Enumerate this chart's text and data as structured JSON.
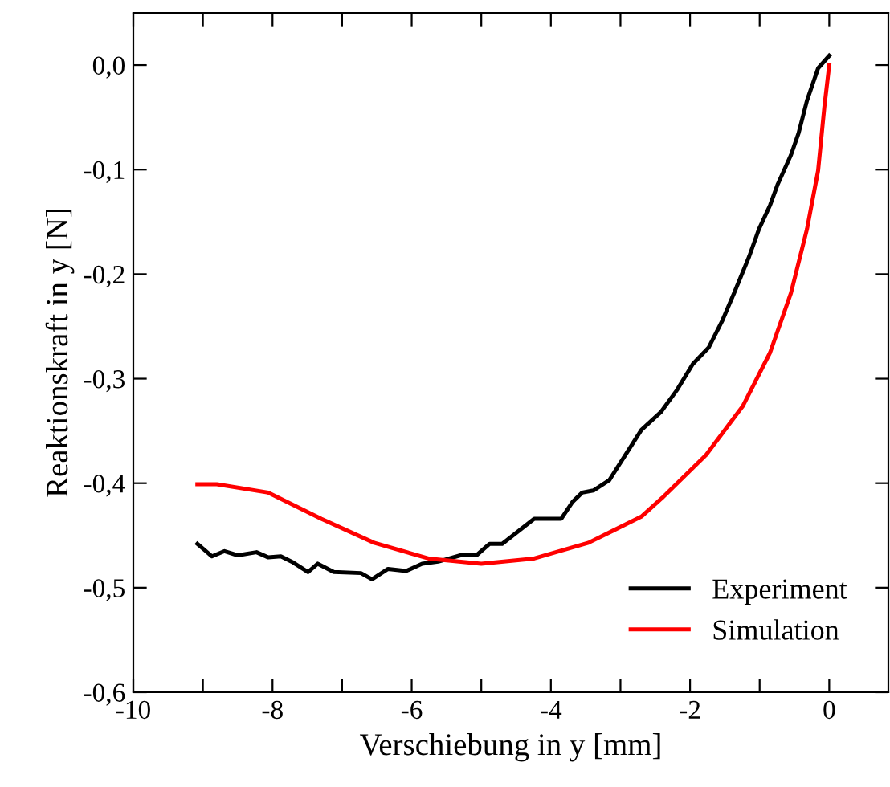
{
  "chart_data": {
    "type": "line",
    "xlabel": "Verschiebung in y [mm]",
    "ylabel": "Reaktionskraft in y [N]",
    "xlim": [
      -10,
      0.85
    ],
    "ylim": [
      -0.6,
      0.05
    ],
    "xticks": [
      {
        "value": -10,
        "label": "-10"
      },
      {
        "value": -9,
        "label": null
      },
      {
        "value": -8,
        "label": "-8"
      },
      {
        "value": -7,
        "label": null
      },
      {
        "value": -6,
        "label": "-6"
      },
      {
        "value": -5,
        "label": null
      },
      {
        "value": -4,
        "label": "-4"
      },
      {
        "value": -3,
        "label": null
      },
      {
        "value": -2,
        "label": "-2"
      },
      {
        "value": -1,
        "label": null
      },
      {
        "value": 0,
        "label": "0"
      }
    ],
    "yticks": [
      {
        "value": -0.6,
        "label": "-0,6"
      },
      {
        "value": -0.5,
        "label": "-0,5"
      },
      {
        "value": -0.4,
        "label": "-0,4"
      },
      {
        "value": -0.3,
        "label": "-0,3"
      },
      {
        "value": -0.2,
        "label": "-0,2"
      },
      {
        "value": -0.1,
        "label": "-0,1"
      },
      {
        "value": 0,
        "label": "0,0"
      }
    ],
    "grid": false,
    "legend": "bottom right",
    "marker": "none",
    "line_style": "solid",
    "series": [
      {
        "name": "Experiment",
        "color": "#000000",
        "x": [
          -9.08,
          -8.87,
          -8.69,
          -8.5,
          -8.23,
          -8.06,
          -7.88,
          -7.7,
          -7.49,
          -7.35,
          -7.12,
          -6.73,
          -6.57,
          -6.34,
          -6.08,
          -5.85,
          -5.62,
          -5.3,
          -5.07,
          -4.88,
          -4.7,
          -4.24,
          -3.85,
          -3.69,
          -3.55,
          -3.39,
          -3.16,
          -2.93,
          -2.7,
          -2.42,
          -2.19,
          -1.96,
          -1.73,
          -1.54,
          -1.36,
          -1.15,
          -1.01,
          -0.85,
          -0.74,
          -0.55,
          -0.44,
          -0.32,
          -0.16,
          0.0
        ],
        "values": [
          -0.458,
          -0.47,
          -0.465,
          -0.469,
          -0.466,
          -0.471,
          -0.47,
          -0.476,
          -0.485,
          -0.477,
          -0.485,
          -0.486,
          -0.492,
          -0.482,
          -0.484,
          -0.477,
          -0.475,
          -0.469,
          -0.469,
          -0.458,
          -0.458,
          -0.434,
          -0.434,
          -0.418,
          -0.409,
          -0.407,
          -0.397,
          -0.373,
          -0.349,
          -0.332,
          -0.311,
          -0.286,
          -0.27,
          -0.245,
          -0.217,
          -0.183,
          -0.157,
          -0.134,
          -0.114,
          -0.086,
          -0.065,
          -0.034,
          -0.003,
          0.009
        ]
      },
      {
        "name": "Simulation",
        "color": "#ff0000",
        "x": [
          -9.08,
          -8.8,
          -8.06,
          -7.3,
          -6.54,
          -5.76,
          -5.0,
          -4.24,
          -3.46,
          -2.7,
          -2.4,
          -1.77,
          -1.24,
          -0.85,
          -0.55,
          -0.32,
          -0.16,
          -0.07,
          0.0
        ],
        "values": [
          -0.401,
          -0.401,
          -0.409,
          -0.434,
          -0.457,
          -0.472,
          -0.477,
          -0.472,
          -0.457,
          -0.432,
          -0.414,
          -0.373,
          -0.326,
          -0.275,
          -0.218,
          -0.157,
          -0.101,
          -0.04,
          0.0
        ]
      }
    ]
  }
}
